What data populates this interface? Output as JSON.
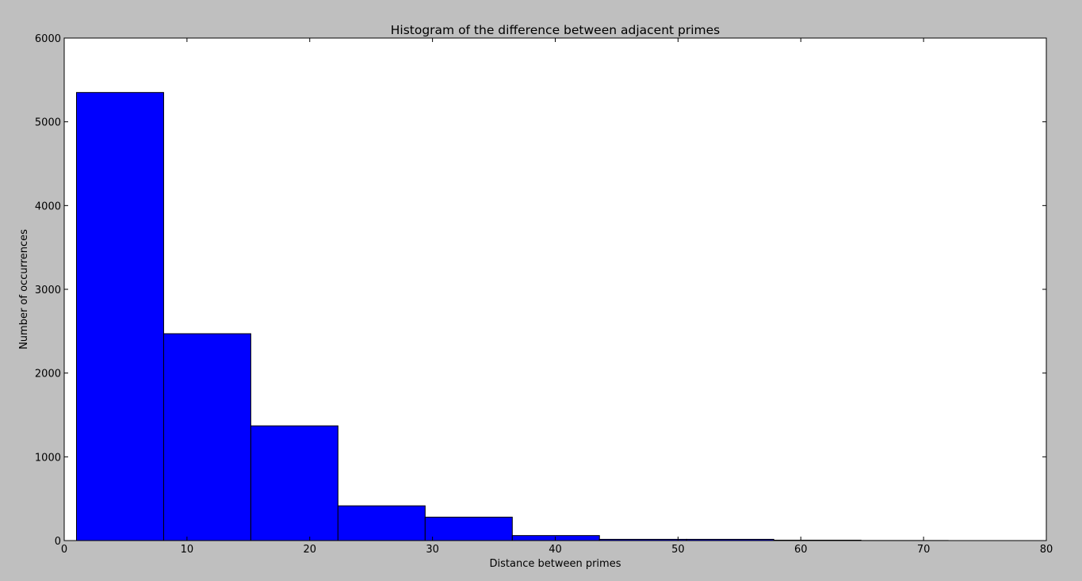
{
  "chart_data": {
    "type": "bar",
    "title": "Histogram of the difference between adjacent primes",
    "xlabel": "Distance between primes",
    "ylabel": "Number of occurrences",
    "xlim": [
      0,
      80
    ],
    "ylim": [
      0,
      6000
    ],
    "xticks": [
      "0",
      "10",
      "20",
      "30",
      "40",
      "50",
      "60",
      "70",
      "80"
    ],
    "yticks": [
      "0",
      "1000",
      "2000",
      "3000",
      "4000",
      "5000",
      "6000"
    ],
    "grid": false,
    "legend": "none",
    "bins": [
      {
        "x0": 1.0,
        "x1": 8.1,
        "value": 5350
      },
      {
        "x0": 8.1,
        "x1": 15.2,
        "value": 2470
      },
      {
        "x0": 15.2,
        "x1": 22.3,
        "value": 1370
      },
      {
        "x0": 22.3,
        "x1": 29.4,
        "value": 415
      },
      {
        "x0": 29.4,
        "x1": 36.5,
        "value": 280
      },
      {
        "x0": 36.5,
        "x1": 43.6,
        "value": 60
      },
      {
        "x0": 43.6,
        "x1": 50.7,
        "value": 15
      },
      {
        "x0": 50.7,
        "x1": 57.8,
        "value": 15
      },
      {
        "x0": 57.8,
        "x1": 64.9,
        "value": 5
      },
      {
        "x0": 64.9,
        "x1": 72.0,
        "value": 1
      }
    ],
    "colors": {
      "bar": "#0000ff",
      "edge": "#000000",
      "background": "#ffffff",
      "figure": "#bfbfbf"
    }
  }
}
